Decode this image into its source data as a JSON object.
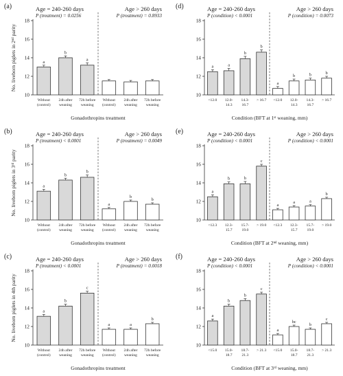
{
  "chart_data": [
    {
      "type": "bar",
      "panel": "(a)",
      "ylabel": "No. liveborn piglets in 2ⁿᵈ parity",
      "xlabel": "Gonadothropins treatment",
      "ylim": [
        0,
        18
      ],
      "yticks": [
        10,
        12,
        14,
        16,
        18
      ],
      "groups": [
        {
          "title": "Age = 240-260 days",
          "p": "P (treatment) = 0.0256",
          "fill": "#d9d9d9",
          "categories": [
            "Without\n(control)",
            "24h after\nweaning",
            "72h before\nweaning"
          ],
          "values": [
            13.0,
            14.0,
            13.2
          ],
          "errors": [
            0.2,
            0.2,
            0.25
          ],
          "letters": [
            "a",
            "b",
            "a"
          ]
        },
        {
          "title": "Age > 260 days",
          "p": "P (treatment) = 0.8933",
          "fill": "#ffffff",
          "categories": [
            "Without\n(control)",
            "24h after\nweaning",
            "72h before\nweaning"
          ],
          "values": [
            11.5,
            11.4,
            11.5
          ],
          "errors": [
            0.15,
            0.15,
            0.15
          ],
          "letters": [
            "",
            "",
            ""
          ]
        }
      ]
    },
    {
      "type": "bar",
      "panel": "(b)",
      "ylabel": "No. liveborn piglets in 3ʳᵈ parity",
      "xlabel": "Gonadothropins treatment",
      "ylim": [
        0,
        18
      ],
      "yticks": [
        10,
        12,
        14,
        16,
        18
      ],
      "groups": [
        {
          "title": "Age = 240-260 days",
          "p": "P (treatment) < 0.0001",
          "fill": "#d9d9d9",
          "categories": [
            "Without\n(control)",
            "24h after\nweaning",
            "72h before\nweaning"
          ],
          "values": [
            13.1,
            14.3,
            14.6
          ],
          "errors": [
            0.2,
            0.2,
            0.25
          ],
          "letters": [
            "a",
            "b",
            "b"
          ]
        },
        {
          "title": "Age > 260 days",
          "p": "P (treatment) = 0.0049",
          "fill": "#ffffff",
          "categories": [
            "Without\n(control)",
            "24h after\nweaning",
            "72h before\nweaning"
          ],
          "values": [
            11.2,
            12.0,
            11.7
          ],
          "errors": [
            0.15,
            0.15,
            0.15
          ],
          "letters": [
            "a",
            "b",
            "b"
          ]
        }
      ]
    },
    {
      "type": "bar",
      "panel": "(c)",
      "ylabel": "No. liveborn piglets in 4th parity",
      "xlabel": "Gonadothropins treatment",
      "ylim": [
        0,
        18
      ],
      "yticks": [
        10,
        12,
        14,
        16,
        18
      ],
      "groups": [
        {
          "title": "Age = 240-260 days",
          "p": "P (treatment) < 0.0001",
          "fill": "#d9d9d9",
          "categories": [
            "Without\n(control)",
            "24h after\nweaning",
            "72h before\nweaning"
          ],
          "values": [
            13.1,
            14.2,
            15.6
          ],
          "errors": [
            0.2,
            0.2,
            0.2
          ],
          "letters": [
            "a",
            "b",
            "c"
          ]
        },
        {
          "title": "Age > 260 days",
          "p": "P (treatment) = 0.0018",
          "fill": "#ffffff",
          "categories": [
            "Without\n(control)",
            "24h after\nweaning",
            "72h before\nweaning"
          ],
          "values": [
            11.7,
            11.7,
            12.3
          ],
          "errors": [
            0.15,
            0.15,
            0.15
          ],
          "letters": [
            "a",
            "a",
            "b"
          ]
        }
      ]
    },
    {
      "type": "bar",
      "panel": "(d)",
      "ylabel": "",
      "xlabel": "Condition (BFT at 1ˢᵗ weaning, mm)",
      "ylim": [
        0,
        18
      ],
      "yticks": [
        10,
        12,
        14,
        16,
        18
      ],
      "groups": [
        {
          "title": "Age = 240-260 days",
          "p": "P (condition) < 0.0001",
          "fill": "#d9d9d9",
          "categories": [
            "<12.0",
            "12.0-\n14.3",
            "14.3-\n16.7",
            "> 16.7"
          ],
          "values": [
            12.5,
            12.6,
            13.9,
            14.6
          ],
          "errors": [
            0.2,
            0.25,
            0.25,
            0.25
          ],
          "letters": [
            "a",
            "a",
            "b",
            "b"
          ]
        },
        {
          "title": "Age > 260 days",
          "p": "P (condition) = 0.0073",
          "fill": "#ffffff",
          "categories": [
            "<12.0",
            "12.0-\n14.3",
            "14.3-\n16.7",
            "> 16.7"
          ],
          "values": [
            10.7,
            11.5,
            11.6,
            11.8
          ],
          "errors": [
            0.2,
            0.2,
            0.2,
            0.2
          ],
          "letters": [
            "a",
            "b",
            "b",
            "b"
          ]
        }
      ]
    },
    {
      "type": "bar",
      "panel": "(e)",
      "ylabel": "",
      "xlabel": "Condition (BFT at 2ⁿᵈ weaning, mm)",
      "ylim": [
        0,
        18
      ],
      "yticks": [
        10,
        12,
        14,
        16,
        18
      ],
      "groups": [
        {
          "title": "Age = 240-260 days",
          "p": "P (condition) < 0.0001",
          "fill": "#d9d9d9",
          "categories": [
            "<12.3",
            "12.3-\n15.7",
            "15.7-\n19.0",
            "> 19.0"
          ],
          "values": [
            12.5,
            13.9,
            13.9,
            15.8
          ],
          "errors": [
            0.2,
            0.2,
            0.25,
            0.2
          ],
          "letters": [
            "a",
            "b",
            "b",
            "c"
          ]
        },
        {
          "title": "Age > 260 days",
          "p": "P (condition) < 0.0001",
          "fill": "#ffffff",
          "categories": [
            "<12.3",
            "12.3-\n15.7",
            "15.7-\n19.0",
            "> 19.0"
          ],
          "values": [
            11.1,
            11.4,
            11.5,
            12.3
          ],
          "errors": [
            0.15,
            0.15,
            0.15,
            0.15
          ],
          "letters": [
            "a",
            "a",
            "a",
            "b"
          ]
        }
      ]
    },
    {
      "type": "bar",
      "panel": "(f)",
      "ylabel": "",
      "xlabel": "Condition (BFT at 3ʳᵈ weaning, mm)",
      "ylim": [
        0,
        18
      ],
      "yticks": [
        10,
        12,
        14,
        16,
        18
      ],
      "groups": [
        {
          "title": "Age = 240-260 days",
          "p": "P (condition) < 0.0001",
          "fill": "#d9d9d9",
          "categories": [
            "<15.0",
            "15.0-\n18.7",
            "18.7-\n21.3",
            "> 21.3"
          ],
          "values": [
            12.6,
            14.2,
            14.8,
            15.5
          ],
          "errors": [
            0.2,
            0.2,
            0.2,
            0.2
          ],
          "letters": [
            "a",
            "b",
            "b",
            "c"
          ]
        },
        {
          "title": "Age > 260 days",
          "p": "P (condition) < 0.0001",
          "fill": "#ffffff",
          "categories": [
            "<15.0",
            "15.0-\n18.7",
            "18.7-\n21.3",
            "> 21.3"
          ],
          "values": [
            11.1,
            12.0,
            11.7,
            12.3
          ],
          "errors": [
            0.15,
            0.15,
            0.15,
            0.15
          ],
          "letters": [
            "a",
            "bc",
            "b",
            "c"
          ]
        }
      ]
    }
  ]
}
